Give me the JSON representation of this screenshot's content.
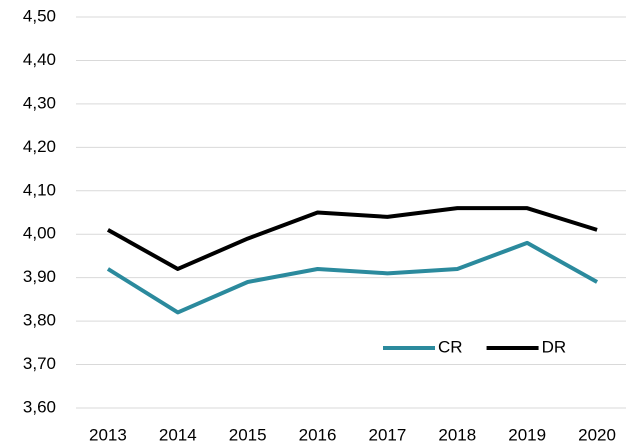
{
  "chart_data": {
    "type": "line",
    "categories": [
      "2013",
      "2014",
      "2015",
      "2016",
      "2017",
      "2018",
      "2019",
      "2020"
    ],
    "series": [
      {
        "name": "CR",
        "color": "#2b8a9d",
        "values": [
          3.92,
          3.82,
          3.89,
          3.92,
          3.91,
          3.92,
          3.98,
          3.89
        ]
      },
      {
        "name": "DR",
        "color": "#000000",
        "values": [
          4.01,
          3.92,
          3.99,
          4.05,
          4.04,
          4.06,
          4.06,
          4.01
        ]
      }
    ],
    "ylim": [
      3.6,
      4.5
    ],
    "yticks": [
      {
        "value": 3.6,
        "label": "3,60"
      },
      {
        "value": 3.7,
        "label": "3,70"
      },
      {
        "value": 3.8,
        "label": "3,80"
      },
      {
        "value": 3.9,
        "label": "3,90"
      },
      {
        "value": 4.0,
        "label": "4,00"
      },
      {
        "value": 4.1,
        "label": "4,10"
      },
      {
        "value": 4.2,
        "label": "4,20"
      },
      {
        "value": 4.3,
        "label": "4,30"
      },
      {
        "value": 4.4,
        "label": "4,40"
      },
      {
        "value": 4.5,
        "label": "4,50"
      }
    ],
    "grid": true,
    "legend": "lower right"
  }
}
